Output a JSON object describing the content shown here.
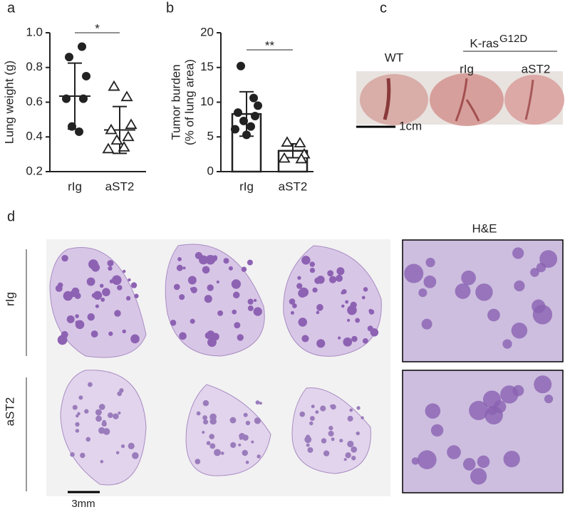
{
  "panel_labels": [
    "a",
    "b",
    "c",
    "d"
  ],
  "chart_data": [
    {
      "type": "dot",
      "ylabel": "Lung weight (g)",
      "categories": [
        "rIg",
        "aST2"
      ],
      "markers": [
        "circle",
        "triangle"
      ],
      "color": "#222222",
      "points": [
        [
          0.86,
          0.92,
          0.75,
          0.62,
          0.62,
          0.46,
          0.43
        ],
        [
          0.69,
          0.63,
          0.47,
          0.44,
          0.4,
          0.38,
          0.34,
          0.33
        ]
      ],
      "means": [
        0.635,
        0.44
      ],
      "sd": [
        0.19,
        0.135
      ],
      "ylim": [
        0.2,
        1
      ],
      "yticks": [
        0.2,
        0.4,
        0.6,
        0.8,
        {
          "value": 1,
          "label": "1.0"
        }
      ],
      "annotation": "*"
    },
    {
      "type": "bar",
      "ylabel": [
        "Tumor burden",
        "(% of lung area)"
      ],
      "categories": [
        "rIg",
        "aST2"
      ],
      "markers": [
        "circle",
        "triangle"
      ],
      "color": "#222222",
      "points": [
        [
          15.2,
          10.6,
          9.5,
          8.5,
          8,
          7.3,
          6.5,
          6.1,
          5.3
        ],
        [
          4.2,
          4.1,
          2.5,
          1.9,
          1.8
        ]
      ],
      "means": [
        8.3,
        3.0
      ],
      "sd": [
        3.2,
        1.0
      ],
      "ylim": [
        0,
        20
      ],
      "yticks": [
        0,
        5,
        10,
        15,
        20
      ],
      "annotation": "**"
    }
  ],
  "photo": {
    "wt": "WT",
    "genotype": "K-ras",
    "superscript": "G12D",
    "groups": [
      "rIg",
      "aST2"
    ],
    "scale": "1cm"
  },
  "histology": {
    "stain": "H&E",
    "rows": [
      "rIg",
      "aST2"
    ],
    "scale": "3mm"
  }
}
